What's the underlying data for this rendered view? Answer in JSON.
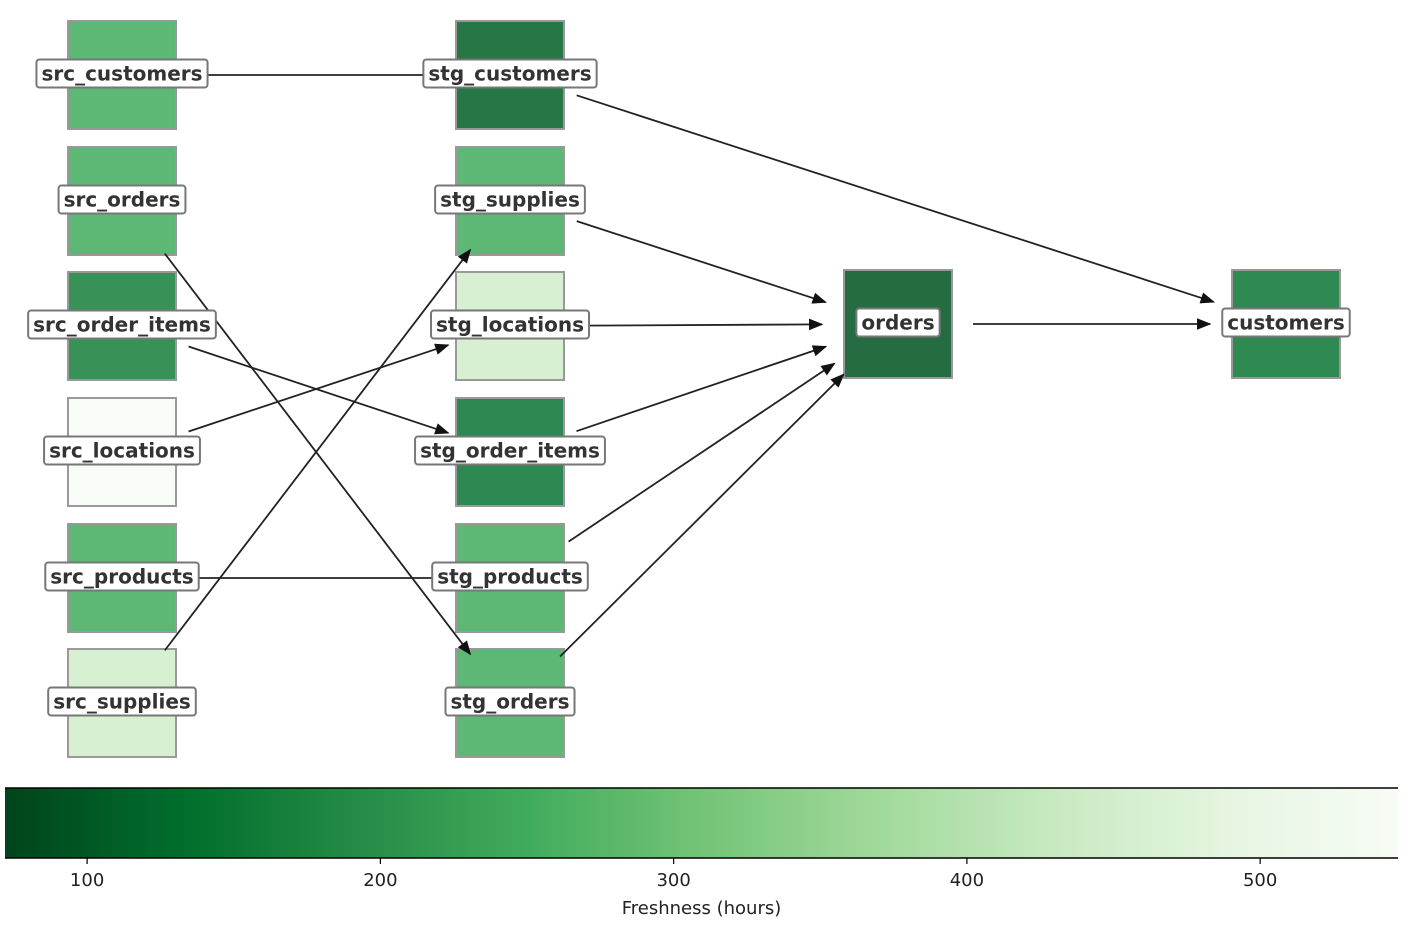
{
  "nodes": [
    {
      "label": "src_customers",
      "freshness": 250
    },
    {
      "label": "src_orders",
      "freshness": 250
    },
    {
      "label": "src_order_items",
      "freshness": 167
    },
    {
      "label": "src_locations",
      "freshness": 545
    },
    {
      "label": "src_products",
      "freshness": 250
    },
    {
      "label": "src_supplies",
      "freshness": 447
    },
    {
      "label": "stg_customers",
      "freshness": 110
    },
    {
      "label": "stg_supplies",
      "freshness": 250
    },
    {
      "label": "stg_locations",
      "freshness": 447
    },
    {
      "label": "stg_order_items",
      "freshness": 145
    },
    {
      "label": "stg_products",
      "freshness": 250
    },
    {
      "label": "stg_orders",
      "freshness": 250
    },
    {
      "label": "orders",
      "freshness": 92
    },
    {
      "label": "customers",
      "freshness": 148
    }
  ],
  "edges": [
    [
      0,
      6
    ],
    [
      1,
      11
    ],
    [
      2,
      9
    ],
    [
      3,
      8
    ],
    [
      4,
      10
    ],
    [
      5,
      7
    ],
    [
      7,
      12
    ],
    [
      8,
      12
    ],
    [
      9,
      12
    ],
    [
      10,
      12
    ],
    [
      11,
      12
    ],
    [
      6,
      13
    ],
    [
      12,
      13
    ]
  ],
  "colorbar": {
    "label": "Freshness (hours)",
    "clim": [
      72,
      547
    ],
    "ticks": [
      100,
      200,
      300,
      400,
      500
    ],
    "colormap": [
      "#00441b",
      "#006d2c",
      "#238b45",
      "#41ab5d",
      "#74c476",
      "#a1d99b",
      "#c7e9c0",
      "#e5f5e0",
      "#f7fcf5"
    ]
  }
}
